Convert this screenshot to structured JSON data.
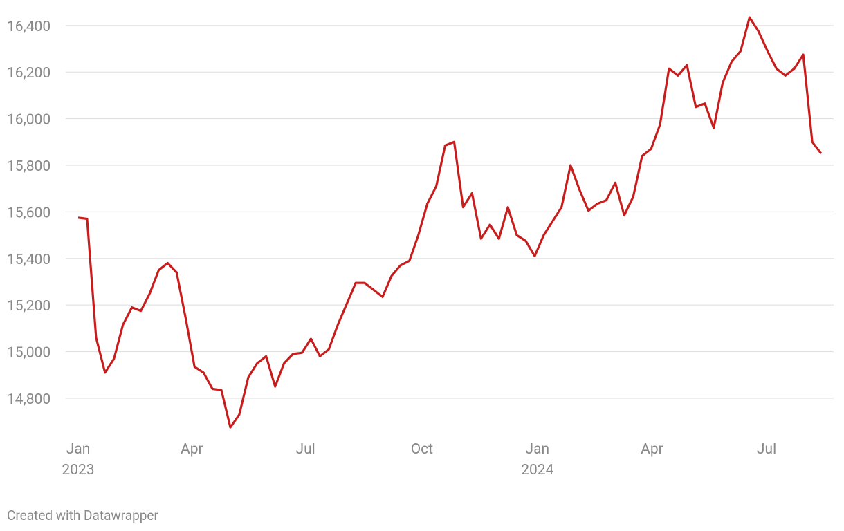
{
  "chart_data": {
    "type": "line",
    "series": [
      {
        "color": "#c71e1d",
        "values": [
          15575,
          15570,
          15060,
          14910,
          14970,
          15115,
          15190,
          15175,
          15250,
          15350,
          15380,
          15340,
          15145,
          14935,
          14910,
          14840,
          14835,
          14675,
          14730,
          14890,
          14950,
          14980,
          14850,
          14950,
          14990,
          14995,
          15055,
          14980,
          15010,
          15115,
          15205,
          15295,
          15295,
          15265,
          15235,
          15325,
          15370,
          15390,
          15500,
          15635,
          15710,
          15885,
          15900,
          15620,
          15680,
          15485,
          15545,
          15485,
          15620,
          15500,
          15475,
          15410,
          15500,
          15560,
          15620,
          15800,
          15695,
          15605,
          15635,
          15650,
          15725,
          15585,
          15665,
          15840,
          15870,
          15975,
          16215,
          16185,
          16230,
          16050,
          16065,
          15960,
          16155,
          16245,
          16290,
          16435,
          16375,
          16290,
          16215,
          16185,
          16215,
          16275,
          15900,
          15850
        ]
      }
    ],
    "xlim": [
      0,
      83
    ],
    "xticks": [
      {
        "value": 0,
        "label": "Jan 2023"
      },
      {
        "value": 12.7,
        "label": "Apr"
      },
      {
        "value": 25.4,
        "label": "Jul"
      },
      {
        "value": 38.4,
        "label": "Oct"
      },
      {
        "value": 51.3,
        "label": "Jan 2024"
      },
      {
        "value": 64.1,
        "label": "Apr"
      },
      {
        "value": 76.9,
        "label": "Jul"
      }
    ],
    "ylim": [
      14650,
      16450
    ],
    "yticks": [
      {
        "value": 14800,
        "label": "14,800"
      },
      {
        "value": 15000,
        "label": "15,000"
      },
      {
        "value": 15200,
        "label": "15,200"
      },
      {
        "value": 15400,
        "label": "15,400"
      },
      {
        "value": 15600,
        "label": "15,600"
      },
      {
        "value": 15800,
        "label": "15,800"
      },
      {
        "value": 16000,
        "label": "16,000"
      },
      {
        "value": 16200,
        "label": "16,200"
      },
      {
        "value": 16400,
        "label": "16,400"
      }
    ],
    "grid": true
  },
  "footer": "Created with Datawrapper"
}
